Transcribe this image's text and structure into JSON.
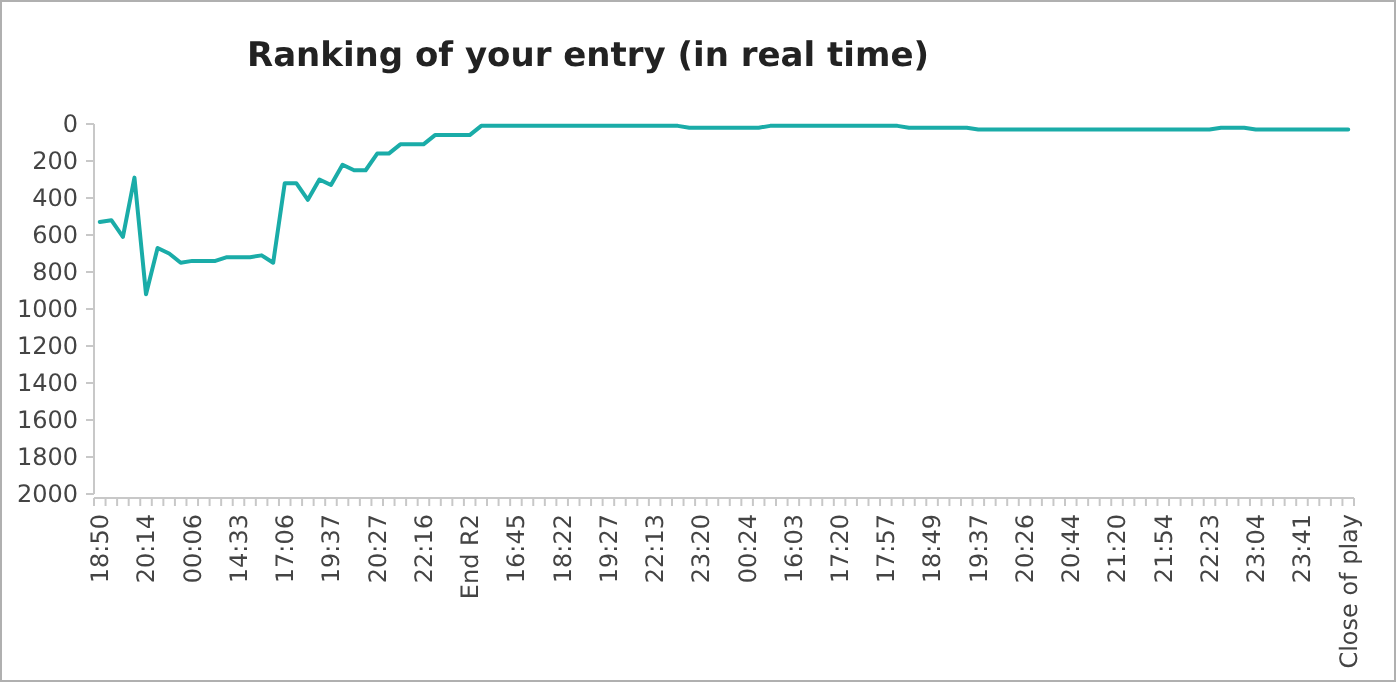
{
  "chart_data": {
    "type": "line",
    "title": "Ranking of your entry (in real time)",
    "categories": [
      "18:50",
      null,
      null,
      null,
      "20:14",
      null,
      null,
      null,
      "00:06",
      null,
      null,
      null,
      "14:33",
      null,
      null,
      null,
      "17:06",
      null,
      null,
      null,
      "19:37",
      null,
      null,
      null,
      "20:27",
      null,
      null,
      null,
      "22:16",
      null,
      null,
      null,
      "End R2",
      null,
      null,
      null,
      "16:45",
      null,
      null,
      null,
      "18:22",
      null,
      null,
      null,
      "19:27",
      null,
      null,
      null,
      "22:13",
      null,
      null,
      null,
      "23:20",
      null,
      null,
      null,
      "00:24",
      null,
      null,
      null,
      "16:03",
      null,
      null,
      null,
      "17:20",
      null,
      null,
      null,
      "17:57",
      null,
      null,
      null,
      "18:49",
      null,
      null,
      null,
      "19:37",
      null,
      null,
      null,
      "20:26",
      null,
      null,
      null,
      "20:44",
      null,
      null,
      null,
      "21:20",
      null,
      null,
      null,
      "21:54",
      null,
      null,
      null,
      "22:23",
      null,
      null,
      null,
      "23:04",
      null,
      null,
      null,
      "23:41",
      null,
      null,
      null,
      "Close of play"
    ],
    "series": [
      {
        "color": "#1aaca8",
        "values": [
          530,
          520,
          610,
          290,
          920,
          670,
          700,
          750,
          740,
          740,
          740,
          720,
          720,
          720,
          710,
          750,
          320,
          320,
          410,
          300,
          330,
          220,
          250,
          250,
          160,
          160,
          110,
          110,
          110,
          60,
          60,
          60,
          60,
          10,
          10,
          10,
          10,
          10,
          10,
          10,
          10,
          10,
          10,
          10,
          10,
          10,
          10,
          10,
          10,
          10,
          10,
          20,
          20,
          20,
          20,
          20,
          20,
          20,
          10,
          10,
          10,
          10,
          10,
          10,
          10,
          10,
          10,
          10,
          10,
          10,
          20,
          20,
          20,
          20,
          20,
          20,
          30,
          30,
          30,
          30,
          30,
          30,
          30,
          30,
          30,
          30,
          30,
          30,
          30,
          30,
          30,
          30,
          30,
          30,
          30,
          30,
          30,
          20,
          20,
          20,
          30,
          30,
          30,
          30,
          30,
          30,
          30,
          30,
          30
        ]
      }
    ],
    "ylim": [
      2000,
      0
    ],
    "yticks": [
      0,
      200,
      400,
      600,
      800,
      1000,
      1200,
      1400,
      1600,
      1800,
      2000
    ],
    "grid": false,
    "marker": "none",
    "line_style": "solid"
  }
}
